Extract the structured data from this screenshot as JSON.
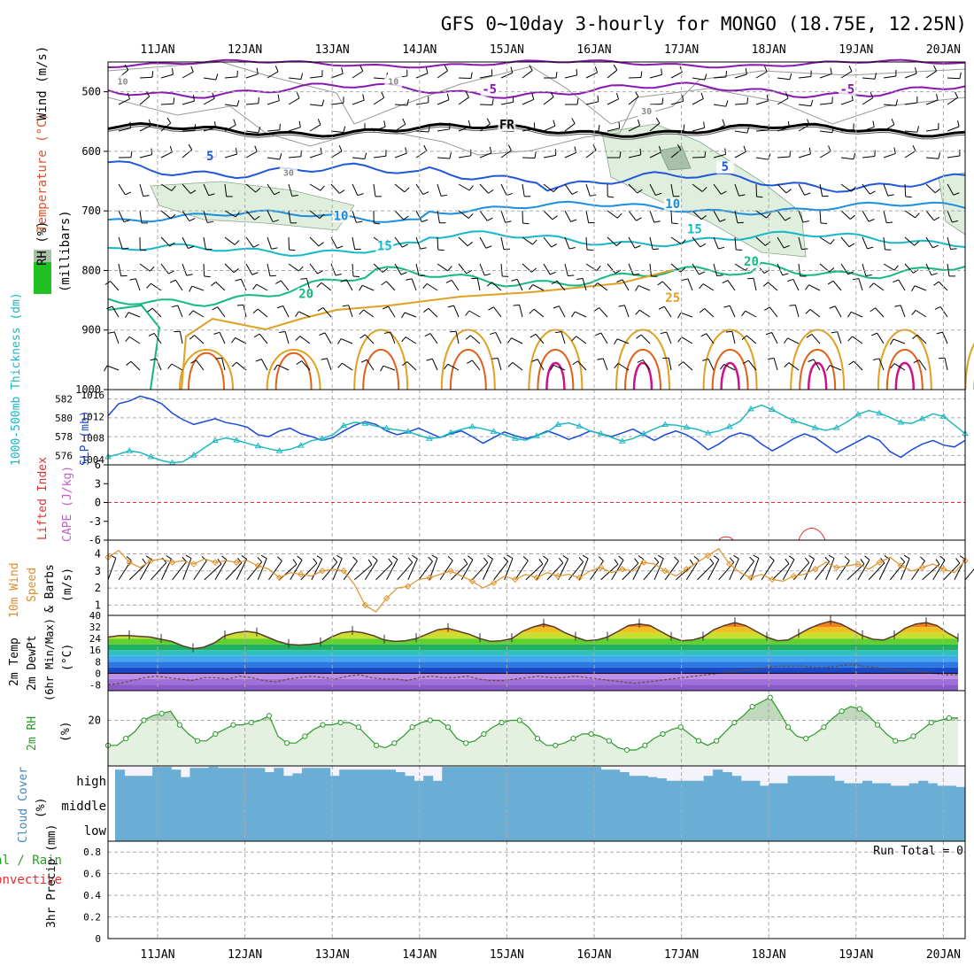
{
  "title": "GFS 0~10day 3-hourly for MONGO (18.75E, 12.25N)",
  "days": [
    "11JAN",
    "12JAN",
    "13JAN",
    "14JAN",
    "15JAN",
    "16JAN",
    "17JAN",
    "18JAN",
    "19JAN",
    "20JAN"
  ],
  "colors": {
    "purple": "#8a18b0",
    "black": "#000000",
    "blue": "#1f58d8",
    "ltblue": "#1a8fe0",
    "cyan": "#14b8c8",
    "green": "#14b884",
    "orange": "#e0a020",
    "dkorange": "#e06018",
    "magenta": "#d0108a",
    "rhfill": "#dfeedd",
    "cloud": "#6aaed6",
    "cloudbg": "#f4f2fa"
  },
  "chart_data": [
    {
      "type": "contour",
      "name": "cross-section",
      "ylabel_parts": {
        "rh": "RH (%)",
        "temp": "Temperature (°C)",
        "wind": "Wind (m/s)",
        "mb": "(millibars)"
      },
      "ylim": [
        450,
        1000
      ],
      "yticks": [
        500,
        600,
        700,
        800,
        900,
        1000
      ],
      "contour_labels": [
        {
          "text": "-5",
          "day": 3.8,
          "p": 503
        },
        {
          "text": "-5",
          "day": 7.9,
          "p": 503
        },
        {
          "text": "FR",
          "day": 4.0,
          "p": 562
        },
        {
          "text": "5",
          "day": 0.6,
          "p": 615
        },
        {
          "text": "5",
          "day": 6.5,
          "p": 633
        },
        {
          "text": "10",
          "day": 2.1,
          "p": 715
        },
        {
          "text": "10",
          "day": 5.9,
          "p": 695
        },
        {
          "text": "15",
          "day": 2.6,
          "p": 766
        },
        {
          "text": "15",
          "day": 6.15,
          "p": 738
        },
        {
          "text": "20",
          "day": 1.7,
          "p": 846
        },
        {
          "text": "20",
          "day": 6.8,
          "p": 792
        },
        {
          "text": "25",
          "day": 5.9,
          "p": 853
        },
        {
          "text": "10",
          "day": -0.4,
          "p": 488
        },
        {
          "text": "10",
          "day": 2.7,
          "p": 488
        },
        {
          "text": "30",
          "day": 5.6,
          "p": 538
        },
        {
          "text": "30",
          "day": 1.5,
          "p": 641
        }
      ]
    },
    {
      "type": "line",
      "name": "thickness-slp",
      "ylabel_left": "1000-500mb Thickness (dm)",
      "ylabel_right": "SLP (mb)",
      "left_ticks": [
        576,
        578,
        580,
        582
      ],
      "left_lim": [
        575,
        583
      ],
      "right_ticks": [
        1004,
        1008,
        1012,
        1016
      ],
      "right_lim": [
        1003,
        1017
      ],
      "series": [
        {
          "name": "Thickness (dm)",
          "color": "#1a4ad8",
          "lim_key": "left",
          "values": [
            580.2,
            581.5,
            581.8,
            582.3,
            582,
            581.5,
            580.5,
            579.8,
            579.3,
            579.6,
            579.9,
            579.5,
            579.3,
            579,
            578.2,
            578,
            578.6,
            578.9,
            578.3,
            578,
            577.6,
            577.9,
            578.6,
            579.2,
            579.6,
            579.3,
            578.6,
            578.2,
            578.5,
            578.9,
            578.4,
            577.9,
            578.3,
            578.6,
            578,
            577.3,
            577.9,
            578.5,
            578.1,
            577.8,
            578.1,
            578.6,
            578.2,
            577.7,
            578.1,
            578.6,
            578.3,
            578,
            578.4,
            578.8,
            578.2,
            577.6,
            578.2,
            578.6,
            578.2,
            577.5,
            576.6,
            577.2,
            578,
            578.4,
            578.1,
            577.2,
            576.5,
            577.1,
            577.8,
            578.3,
            577.9,
            577.1,
            576.3,
            576.9,
            577.5,
            578.1,
            577.6,
            576.4,
            575.8,
            576.6,
            577.2,
            577.6,
            577.1,
            576.9,
            577.6
          ]
        },
        {
          "name": "SLP (mb)",
          "color": "#20b8c0",
          "lim_key": "right",
          "values": [
            1004.5,
            1005,
            1005.6,
            1005.3,
            1004.5,
            1003.8,
            1003.4,
            1003.6,
            1004.8,
            1006.2,
            1007.5,
            1008,
            1007.6,
            1007,
            1006.5,
            1006,
            1005.6,
            1005.9,
            1006.6,
            1007.5,
            1007.9,
            1008.6,
            1010.3,
            1010.9,
            1010.7,
            1010.2,
            1009.8,
            1009.5,
            1009.2,
            1008.5,
            1007.9,
            1008.1,
            1009,
            1009.6,
            1010.1,
            1009.7,
            1009.2,
            1008.6,
            1007.9,
            1007.6,
            1008.4,
            1009.1,
            1010.5,
            1010.8,
            1010.2,
            1009.3,
            1008.8,
            1008.1,
            1007.4,
            1007.9,
            1008.8,
            1009.7,
            1010.5,
            1010.4,
            1010,
            1009.6,
            1008.9,
            1009.3,
            1010.1,
            1011.1,
            1013.4,
            1014.1,
            1013.3,
            1012.2,
            1011.2,
            1010.6,
            1009.9,
            1009.4,
            1009.9,
            1011,
            1012.4,
            1013.1,
            1012.6,
            1011.8,
            1010.9,
            1010.7,
            1011.6,
            1012.5,
            1012,
            1010.4,
            1008.8
          ]
        }
      ]
    },
    {
      "type": "line",
      "name": "lifted-index-cape",
      "ylabel_left": "Lifted Index",
      "ylabel_right": "CAPE (J/kg)",
      "yticks": [
        6,
        3,
        0,
        -3,
        -6
      ],
      "ylim": [
        6,
        -6
      ],
      "zero_line": 0
    },
    {
      "type": "line",
      "name": "10m-wind",
      "ylabel_parts": {
        "a": "10m Wind",
        "b": "Speed",
        "c": "& Barbs",
        "d": "(m/s)"
      },
      "yticks": [
        1,
        2,
        3,
        4
      ],
      "ylim": [
        0.4,
        4.8
      ],
      "series": [
        {
          "name": "10m wind speed (m/s)",
          "color": "#e0922a",
          "values": [
            3.8,
            4.2,
            3.5,
            3.2,
            3.6,
            3.7,
            3.5,
            3.6,
            3.4,
            3.7,
            3.5,
            3.6,
            3.5,
            3.6,
            3.3,
            3.1,
            2.6,
            2.9,
            2.8,
            2.7,
            3.0,
            3.1,
            3.0,
            2.2,
            1.0,
            0.6,
            1.4,
            2.0,
            2.1,
            2.5,
            2.6,
            2.8,
            3.0,
            2.7,
            2.4,
            2.0,
            2.3,
            2.7,
            2.5,
            2.8,
            2.6,
            2.9,
            2.7,
            2.8,
            2.6,
            3.0,
            3.2,
            2.9,
            3.1,
            3.0,
            3.5,
            3.4,
            3.0,
            2.7,
            3.1,
            3.5,
            3.9,
            4.3,
            3.4,
            2.9,
            2.6,
            2.8,
            2.5,
            2.4,
            2.7,
            2.8,
            3.1,
            3.5,
            3.2,
            3.3,
            3.4,
            3.1,
            3.5,
            3.8,
            3.3,
            3.0,
            3.2,
            3.4,
            3.1,
            2.9,
            3.6
          ]
        }
      ]
    },
    {
      "type": "area",
      "name": "2m-temp",
      "ylabel_parts": {
        "a": "2m Temp",
        "b": "2m DewPt",
        "c": "(6hr Min/Max)",
        "d": "(°C)"
      },
      "yticks": [
        -8,
        0,
        8,
        16,
        24,
        32,
        40
      ],
      "ylim": [
        -12,
        40
      ],
      "series": [
        {
          "name": "2m Temp",
          "color": "#5a3a2a",
          "values": [
            25,
            26,
            26,
            25.5,
            25,
            23.5,
            22,
            19,
            17,
            18,
            21,
            26,
            28,
            29,
            28,
            25,
            22,
            20,
            19.5,
            20,
            21,
            25,
            28,
            29,
            28,
            26,
            23,
            22,
            22.5,
            24,
            27,
            30,
            31,
            29,
            27,
            24,
            22,
            22.5,
            24,
            29,
            32,
            34,
            32,
            28,
            25,
            22.5,
            23,
            25,
            29,
            33,
            34,
            33,
            29,
            25,
            22.5,
            23,
            25,
            30,
            33,
            35,
            33,
            29,
            25,
            22.5,
            23,
            27,
            31,
            34,
            36,
            34,
            30,
            26,
            23.5,
            23,
            26,
            31,
            34,
            35,
            33,
            28,
            24
          ]
        },
        {
          "name": "2m DewPt",
          "color": "#6a4a40",
          "values": [
            -8,
            -7,
            -5,
            -3,
            -2,
            -3,
            -4,
            -5,
            -3,
            -3,
            -4,
            -2,
            -3,
            -5,
            -6,
            -4,
            -3,
            -2,
            -3,
            -4,
            -2,
            -1,
            -3,
            -4,
            -4,
            -5,
            -3,
            -2,
            -3,
            -3,
            -2,
            -4,
            -5,
            -5,
            -4,
            -3,
            -2,
            -3,
            -3,
            -2,
            -3,
            -4,
            -5,
            -6,
            -7,
            -6,
            -5,
            -4,
            -3,
            -2,
            -1,
            0,
            1,
            2,
            3,
            4,
            5,
            5,
            5,
            4,
            4,
            5,
            6,
            5,
            4,
            3,
            2,
            2,
            1,
            0,
            -1,
            -1
          ]
        }
      ]
    },
    {
      "type": "area",
      "name": "2m-rh",
      "ylabel": "2m RH",
      "yunit": "(%)",
      "yticks": [
        20
      ],
      "ylim": [
        0,
        33
      ],
      "series": [
        {
          "name": "2m RH (%)",
          "color": "#2a9a2a",
          "values": [
            9,
            9,
            12,
            15,
            20,
            22,
            23,
            24,
            18,
            14,
            11,
            11,
            14,
            16,
            18,
            18,
            19,
            20,
            22,
            13,
            10,
            10,
            13,
            16,
            18,
            18,
            19,
            19,
            17,
            13,
            9,
            8,
            10,
            13,
            17,
            19,
            20,
            20,
            17,
            12,
            10,
            11,
            14,
            17,
            19,
            20,
            20,
            17,
            12,
            9,
            9,
            10,
            12,
            14,
            14,
            13,
            11,
            8,
            7,
            7,
            9,
            12,
            14,
            16,
            17,
            14,
            11,
            9,
            11,
            15,
            19,
            22,
            26,
            28,
            30,
            24,
            17,
            13,
            12,
            14,
            17,
            21,
            24,
            26,
            25,
            22,
            18,
            14,
            11,
            11,
            13,
            16,
            19,
            20,
            21,
            21
          ]
        }
      ]
    },
    {
      "type": "bar",
      "name": "cloud-cover",
      "ylabel_a": "Cloud Cover",
      "ylabel_b": "(%)",
      "levels": [
        "high",
        "middle",
        "low"
      ],
      "high_pct": [
        85,
        60,
        60,
        60,
        96,
        96,
        85,
        55,
        92,
        92,
        96,
        92,
        92,
        92,
        92,
        92,
        75,
        92,
        60,
        70,
        92,
        92,
        92,
        60,
        85,
        85,
        85,
        85,
        85,
        85,
        75,
        60,
        40,
        60,
        40,
        96,
        96,
        96,
        96,
        96,
        96,
        96,
        96,
        96,
        96,
        96,
        96,
        96,
        96,
        96,
        96,
        96,
        85,
        85,
        75,
        60,
        60,
        55,
        50,
        40,
        40,
        40,
        40,
        60,
        85,
        75,
        60,
        40,
        40,
        20,
        30,
        30,
        60,
        60,
        60,
        60,
        60,
        40,
        30,
        30,
        40,
        30,
        30,
        20,
        20,
        30,
        40,
        30,
        20,
        20,
        15
      ]
    },
    {
      "type": "bar",
      "name": "precip",
      "ylabel_a": "Total / Rain",
      "ylabel_b": "Convective",
      "ylabel_c": "3hr Precip (mm)",
      "yticks": [
        0,
        0.2,
        0.4,
        0.6,
        0.8
      ],
      "ylim": [
        0,
        0.9
      ],
      "run_total": "Run Total = 0",
      "values": []
    }
  ]
}
